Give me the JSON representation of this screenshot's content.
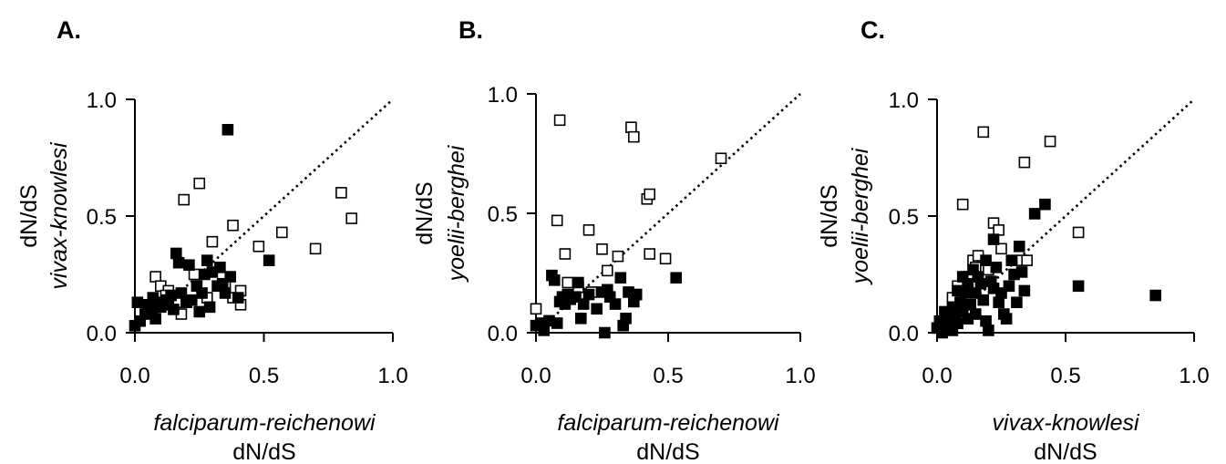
{
  "chart_data": [
    {
      "type": "scatter",
      "panel_label": "A.",
      "xlabel_line1": "falciparum-reichenowi",
      "xlabel_line2": "dN/dS",
      "ylabel_line1": "dN/dS",
      "ylabel_line2": "vivax-knowlesi",
      "xlim": [
        0,
        1.0
      ],
      "ylim": [
        0,
        1.0
      ],
      "xticks": [
        "0.0",
        "0.5",
        "1.0"
      ],
      "yticks": [
        "0.0",
        "0.5",
        "1.0"
      ],
      "reference_line": "y = x",
      "series": [
        {
          "marker": "open-square",
          "points": [
            [
              0.08,
              0.24
            ],
            [
              0.1,
              0.2
            ],
            [
              0.13,
              0.18
            ],
            [
              0.16,
              0.13
            ],
            [
              0.18,
              0.08
            ],
            [
              0.19,
              0.57
            ],
            [
              0.25,
              0.64
            ],
            [
              0.3,
              0.39
            ],
            [
              0.38,
              0.46
            ],
            [
              0.38,
              0.15
            ],
            [
              0.41,
              0.12
            ],
            [
              0.41,
              0.18
            ],
            [
              0.48,
              0.37
            ],
            [
              0.57,
              0.43
            ],
            [
              0.7,
              0.36
            ],
            [
              0.8,
              0.6
            ],
            [
              0.84,
              0.49
            ],
            [
              0.23,
              0.25
            ],
            [
              0.28,
              0.15
            ],
            [
              0.35,
              0.2
            ],
            [
              0.12,
              0.16
            ]
          ]
        },
        {
          "marker": "filled-square",
          "points": [
            [
              0.0,
              0.03
            ],
            [
              0.01,
              0.13
            ],
            [
              0.02,
              0.05
            ],
            [
              0.04,
              0.08
            ],
            [
              0.05,
              0.12
            ],
            [
              0.06,
              0.1
            ],
            [
              0.07,
              0.15
            ],
            [
              0.08,
              0.06
            ],
            [
              0.09,
              0.13
            ],
            [
              0.1,
              0.11
            ],
            [
              0.12,
              0.14
            ],
            [
              0.13,
              0.12
            ],
            [
              0.14,
              0.16
            ],
            [
              0.15,
              0.1
            ],
            [
              0.16,
              0.34
            ],
            [
              0.17,
              0.3
            ],
            [
              0.18,
              0.17
            ],
            [
              0.2,
              0.13
            ],
            [
              0.21,
              0.29
            ],
            [
              0.22,
              0.14
            ],
            [
              0.24,
              0.2
            ],
            [
              0.25,
              0.09
            ],
            [
              0.26,
              0.17
            ],
            [
              0.27,
              0.25
            ],
            [
              0.28,
              0.31
            ],
            [
              0.29,
              0.11
            ],
            [
              0.3,
              0.26
            ],
            [
              0.32,
              0.2
            ],
            [
              0.33,
              0.28
            ],
            [
              0.34,
              0.21
            ],
            [
              0.35,
              0.17
            ],
            [
              0.36,
              0.87
            ],
            [
              0.37,
              0.24
            ],
            [
              0.4,
              0.15
            ],
            [
              0.52,
              0.31
            ]
          ]
        }
      ]
    },
    {
      "type": "scatter",
      "panel_label": "B.",
      "xlabel_line1": "falciparum-reichenowi",
      "xlabel_line2": "dN/dS",
      "ylabel_line1": "dN/dS",
      "ylabel_line2": "yoelii-berghei",
      "xlim": [
        0,
        1.0
      ],
      "ylim": [
        0,
        1.0
      ],
      "xticks": [
        "0.0",
        "0.5",
        "1.0"
      ],
      "yticks": [
        "0.0",
        "0.5",
        "1.0"
      ],
      "reference_line": "y = x",
      "series": [
        {
          "marker": "open-square",
          "points": [
            [
              0.0,
              0.1
            ],
            [
              0.08,
              0.47
            ],
            [
              0.09,
              0.89
            ],
            [
              0.11,
              0.33
            ],
            [
              0.12,
              0.21
            ],
            [
              0.2,
              0.43
            ],
            [
              0.25,
              0.35
            ],
            [
              0.27,
              0.26
            ],
            [
              0.31,
              0.32
            ],
            [
              0.36,
              0.86
            ],
            [
              0.37,
              0.82
            ],
            [
              0.38,
              0.16
            ],
            [
              0.42,
              0.56
            ],
            [
              0.43,
              0.58
            ],
            [
              0.43,
              0.33
            ],
            [
              0.49,
              0.31
            ],
            [
              0.7,
              0.73
            ],
            [
              0.16,
              0.19
            ],
            [
              0.21,
              0.17
            ]
          ]
        },
        {
          "marker": "filled-square",
          "points": [
            [
              0.0,
              0.03
            ],
            [
              0.02,
              0.04
            ],
            [
              0.03,
              0.01
            ],
            [
              0.05,
              0.05
            ],
            [
              0.06,
              0.24
            ],
            [
              0.07,
              0.22
            ],
            [
              0.08,
              0.04
            ],
            [
              0.09,
              0.13
            ],
            [
              0.1,
              0.15
            ],
            [
              0.11,
              0.12
            ],
            [
              0.12,
              0.16
            ],
            [
              0.13,
              0.14
            ],
            [
              0.15,
              0.15
            ],
            [
              0.16,
              0.21
            ],
            [
              0.17,
              0.06
            ],
            [
              0.18,
              0.12
            ],
            [
              0.2,
              0.16
            ],
            [
              0.23,
              0.1
            ],
            [
              0.25,
              0.17
            ],
            [
              0.26,
              0.0
            ],
            [
              0.27,
              0.18
            ],
            [
              0.28,
              0.15
            ],
            [
              0.3,
              0.12
            ],
            [
              0.32,
              0.23
            ],
            [
              0.33,
              0.03
            ],
            [
              0.34,
              0.06
            ],
            [
              0.35,
              0.17
            ],
            [
              0.37,
              0.13
            ],
            [
              0.38,
              0.16
            ],
            [
              0.53,
              0.23
            ]
          ]
        }
      ]
    },
    {
      "type": "scatter",
      "panel_label": "C.",
      "xlabel_line1": "vivax-knowlesi",
      "xlabel_line2": "dN/dS",
      "ylabel_line1": "dN/dS",
      "ylabel_line2": "yoelii-berghei",
      "xlim": [
        0,
        1.0
      ],
      "ylim": [
        0,
        1.0
      ],
      "xticks": [
        "0.0",
        "0.5",
        "1.0"
      ],
      "yticks": [
        "0.0",
        "0.5",
        "1.0"
      ],
      "reference_line": "y = x",
      "series": [
        {
          "marker": "open-square",
          "points": [
            [
              0.1,
              0.55
            ],
            [
              0.12,
              0.24
            ],
            [
              0.14,
              0.31
            ],
            [
              0.15,
              0.28
            ],
            [
              0.16,
              0.33
            ],
            [
              0.18,
              0.86
            ],
            [
              0.2,
              0.27
            ],
            [
              0.22,
              0.47
            ],
            [
              0.24,
              0.44
            ],
            [
              0.25,
              0.36
            ],
            [
              0.33,
              0.31
            ],
            [
              0.34,
              0.73
            ],
            [
              0.35,
              0.31
            ],
            [
              0.44,
              0.82
            ],
            [
              0.55,
              0.43
            ],
            [
              0.08,
              0.2
            ],
            [
              0.06,
              0.15
            ],
            [
              0.1,
              0.12
            ]
          ]
        },
        {
          "marker": "filled-square",
          "points": [
            [
              0.0,
              0.02
            ],
            [
              0.01,
              0.05
            ],
            [
              0.02,
              0.0
            ],
            [
              0.03,
              0.09
            ],
            [
              0.04,
              0.03
            ],
            [
              0.05,
              0.06
            ],
            [
              0.06,
              0.01
            ],
            [
              0.06,
              0.11
            ],
            [
              0.07,
              0.08
            ],
            [
              0.08,
              0.04
            ],
            [
              0.08,
              0.18
            ],
            [
              0.09,
              0.13
            ],
            [
              0.1,
              0.24
            ],
            [
              0.1,
              0.09
            ],
            [
              0.11,
              0.17
            ],
            [
              0.12,
              0.06
            ],
            [
              0.12,
              0.21
            ],
            [
              0.13,
              0.12
            ],
            [
              0.14,
              0.27
            ],
            [
              0.15,
              0.17
            ],
            [
              0.15,
              0.08
            ],
            [
              0.16,
              0.24
            ],
            [
              0.17,
              0.21
            ],
            [
              0.18,
              0.14
            ],
            [
              0.19,
              0.05
            ],
            [
              0.19,
              0.31
            ],
            [
              0.2,
              0.01
            ],
            [
              0.21,
              0.22
            ],
            [
              0.22,
              0.19
            ],
            [
              0.22,
              0.4
            ],
            [
              0.23,
              0.28
            ],
            [
              0.24,
              0.13
            ],
            [
              0.25,
              0.17
            ],
            [
              0.26,
              0.08
            ],
            [
              0.27,
              0.06
            ],
            [
              0.28,
              0.2
            ],
            [
              0.29,
              0.31
            ],
            [
              0.3,
              0.25
            ],
            [
              0.31,
              0.13
            ],
            [
              0.32,
              0.37
            ],
            [
              0.33,
              0.26
            ],
            [
              0.34,
              0.18
            ],
            [
              0.38,
              0.51
            ],
            [
              0.42,
              0.55
            ],
            [
              0.55,
              0.2
            ],
            [
              0.85,
              0.16
            ]
          ]
        }
      ]
    }
  ]
}
